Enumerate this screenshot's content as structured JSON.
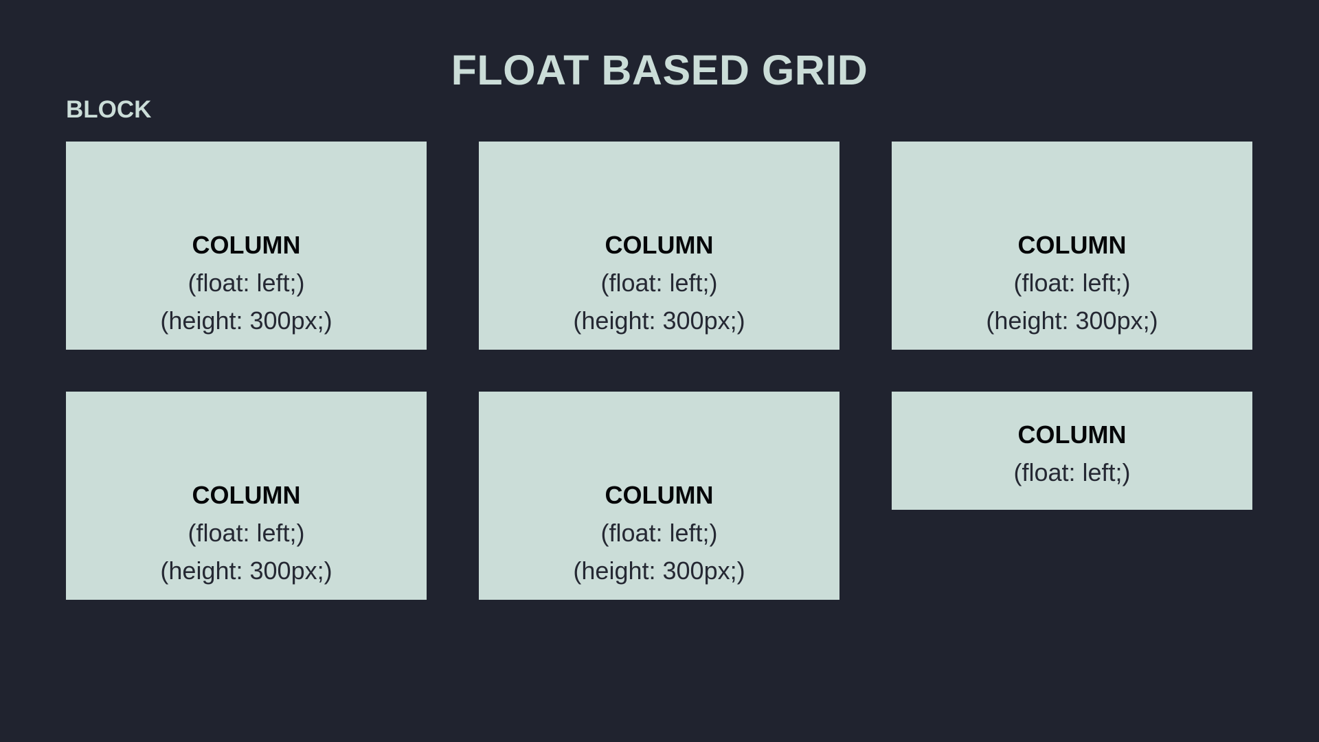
{
  "page": {
    "title": "FLOAT BASED GRID",
    "block_label": "BLOCK",
    "colors": {
      "background": "#20232f",
      "panel": "#cbddd8",
      "heading_text": "#cbddd8",
      "column_title": "#050608",
      "column_text": "#252833"
    }
  },
  "columns": [
    {
      "title": "COLUMN",
      "float_text": "(float: left;)",
      "height_text": "(height: 300px;)"
    },
    {
      "title": "COLUMN",
      "float_text": "(float: left;)",
      "height_text": "(height: 300px;)"
    },
    {
      "title": "COLUMN",
      "float_text": "(float: left;)",
      "height_text": "(height: 300px;)"
    },
    {
      "title": "COLUMN",
      "float_text": "(float: left;)",
      "height_text": "(height: 300px;)"
    },
    {
      "title": "COLUMN",
      "float_text": "(float: left;)",
      "height_text": "(height: 300px;)"
    },
    {
      "title": "COLUMN",
      "float_text": "(float: left;)"
    }
  ]
}
